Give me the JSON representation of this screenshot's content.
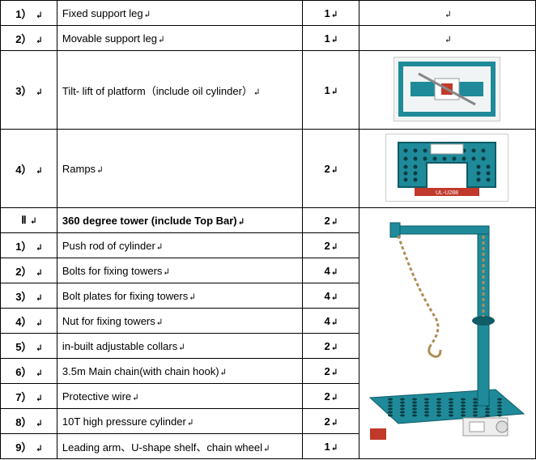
{
  "rows": [
    {
      "num": "1）",
      "desc": "Fixed support leg",
      "qty": "1",
      "img": "blank",
      "rowClass": "short-row"
    },
    {
      "num": "2）",
      "desc": "Movable support leg",
      "qty": "1",
      "img": "blank",
      "rowClass": "short-row"
    },
    {
      "num": "3）",
      "desc": "Tilt- lift of platform（include oil cylinder）",
      "qty": "1",
      "img": "tiltlift",
      "rowClass": "tall-row"
    },
    {
      "num": "4）",
      "desc": "Ramps",
      "qty": "2",
      "img": "ramps",
      "rowClass": "tall-row"
    },
    {
      "num": "Ⅱ",
      "desc": "360 degree tower (include  Top Bar)",
      "qty": "2",
      "img": "tower",
      "rowClass": "short-row section-row",
      "section": true,
      "towerSpan": 10
    },
    {
      "num": "1）",
      "desc": "Push rod of cylinder",
      "qty": "2",
      "rowClass": "short-row"
    },
    {
      "num": "2）",
      "desc": "Bolts for fixing towers",
      "qty": "4",
      "rowClass": "short-row"
    },
    {
      "num": "3）",
      "desc": "Bolt plates for fixing towers",
      "qty": "4",
      "rowClass": "short-row"
    },
    {
      "num": "4）",
      "desc": "Nut for fixing towers",
      "qty": "4",
      "rowClass": "short-row"
    },
    {
      "num": "5）",
      "desc": "in-built adjustable collars",
      "qty": "2",
      "rowClass": "short-row"
    },
    {
      "num": "6）",
      "desc": "3.5m Main chain(with chain hook)",
      "qty": "2",
      "rowClass": "short-row"
    },
    {
      "num": "7）",
      "desc": "Protective wire",
      "qty": "2",
      "rowClass": "short-row"
    },
    {
      "num": "8）",
      "desc": "10T high pressure cylinder",
      "qty": "2",
      "rowClass": "short-row"
    },
    {
      "num": "9）",
      "desc": "Leading arm、U-shape shelf、chain wheel",
      "qty": "1",
      "rowClass": "short-row"
    }
  ],
  "returnChar": "↩",
  "colors": {
    "teal": "#1f8a99",
    "tealDark": "#0e5c66",
    "tealLight": "#7fc4cc",
    "red": "#c0392b",
    "grey": "#cccccc",
    "chain": "#b08d57"
  }
}
